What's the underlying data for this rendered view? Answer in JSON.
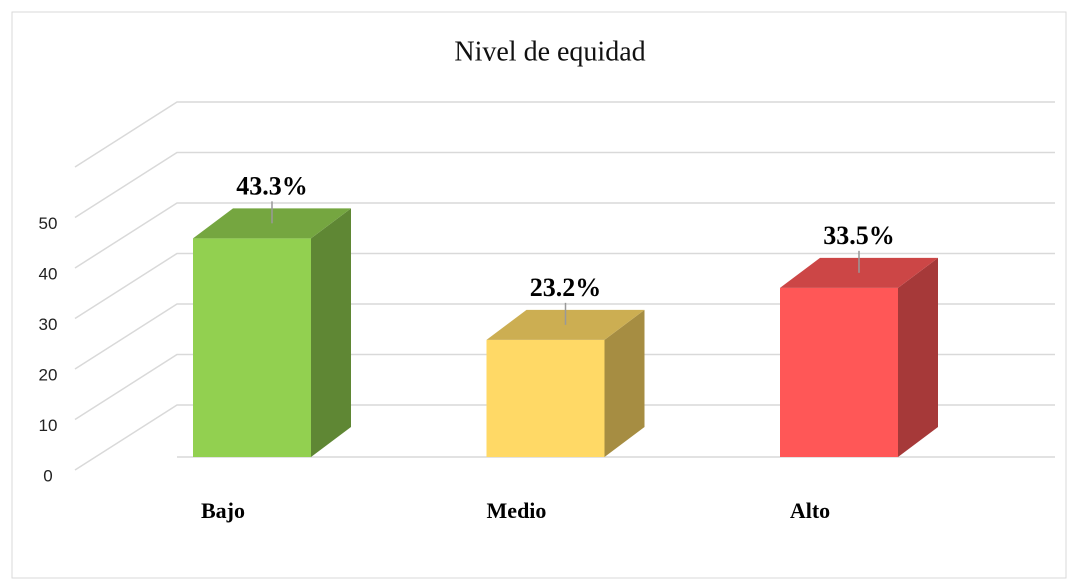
{
  "chart_data": {
    "type": "bar3d",
    "title": "Nivel de equidad",
    "categories": [
      "Bajo",
      "Medio",
      "Alto"
    ],
    "values": [
      43.3,
      23.2,
      33.5
    ],
    "value_labels": [
      "43.3%",
      "23.2%",
      "33.5%"
    ],
    "colors": [
      "#92d050",
      "#ffd966",
      "#ff5757"
    ],
    "ylim": [
      0,
      60
    ],
    "yticks": [
      0,
      10,
      20,
      30,
      40,
      50
    ],
    "grid": true
  }
}
